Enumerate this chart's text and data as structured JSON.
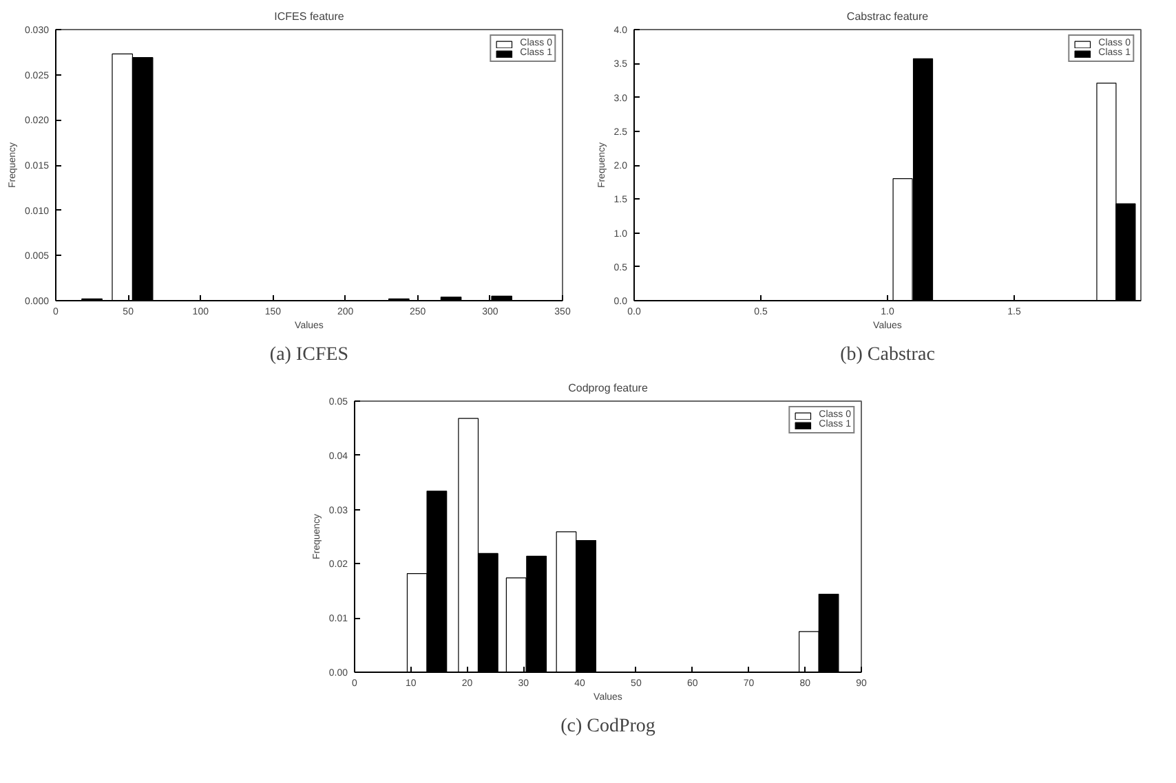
{
  "chart_data": [
    {
      "type": "bar",
      "title": "ICFES feature",
      "xlabel": "Values",
      "ylabel": "Frequency",
      "annotations": [
        "(a) ICFES"
      ],
      "legend": "top right",
      "xlim": [
        0,
        350
      ],
      "xticks": [
        0,
        50,
        100,
        150,
        200,
        250,
        300,
        350
      ],
      "ylim": [
        0,
        0.03
      ],
      "yticks": [
        {
          "value": 0,
          "label": "0.000"
        },
        {
          "value": 0.005,
          "label": "0.005"
        },
        {
          "value": 0.01,
          "label": "0.010"
        },
        {
          "value": 0.015,
          "label": "0.015"
        },
        {
          "value": 0.02,
          "label": "0.020"
        },
        {
          "value": 0.025,
          "label": "0.025"
        },
        {
          "value": 0.03,
          "label": "0.030"
        }
      ],
      "series": [
        {
          "name": "Class 0",
          "color": "#ffffff",
          "x": [
            46
          ],
          "values": [
            0.0273
          ]
        },
        {
          "name": "Class 1",
          "color": "#000000",
          "x": [
            25,
            60,
            237,
            273,
            308
          ],
          "values": [
            0.0002,
            0.0269,
            0.0002,
            0.0004,
            0.0005
          ]
        }
      ]
    },
    {
      "type": "bar",
      "title": "Cabstrac feature",
      "xlabel": "Values",
      "ylabel": "Frequency",
      "annotations": [
        "(b) Cabstrac"
      ],
      "legend": "top right",
      "xlim": [
        0,
        2
      ],
      "xticks": [
        {
          "value": 0,
          "label": "0.0"
        },
        {
          "value": 0.5,
          "label": "0.5"
        },
        {
          "value": 1,
          "label": "1.0"
        },
        {
          "value": 1.5,
          "label": "1.5"
        }
      ],
      "ylim": [
        0,
        4
      ],
      "yticks": [
        {
          "value": 0,
          "label": "0.0"
        },
        {
          "value": 0.5,
          "label": "0.5"
        },
        {
          "value": 1,
          "label": "1.0"
        },
        {
          "value": 1.5,
          "label": "1.5"
        },
        {
          "value": 2,
          "label": "2.0"
        },
        {
          "value": 2.5,
          "label": "2.5"
        },
        {
          "value": 3,
          "label": "3.0"
        },
        {
          "value": 3.5,
          "label": "3.5"
        },
        {
          "value": 4,
          "label": "4.0"
        }
      ],
      "series": [
        {
          "name": "Class 0",
          "color": "#ffffff",
          "x": [
            1.06,
            1.864
          ],
          "values": [
            1.8,
            3.21
          ]
        },
        {
          "name": "Class 1",
          "color": "#000000",
          "x": [
            1.14,
            1.94
          ],
          "values": [
            3.57,
            1.43
          ]
        }
      ]
    },
    {
      "type": "bar",
      "title": "Codprog feature",
      "xlabel": "Values",
      "ylabel": "Frequency",
      "annotations": [
        "(c) CodProg"
      ],
      "legend": "top right",
      "xlim": [
        0,
        90
      ],
      "xticks": [
        0,
        10,
        20,
        30,
        40,
        50,
        60,
        70,
        80,
        90
      ],
      "ylim": [
        0,
        0.05
      ],
      "yticks": [
        {
          "value": 0,
          "label": "0.00"
        },
        {
          "value": 0.01,
          "label": "0.01"
        },
        {
          "value": 0.02,
          "label": "0.02"
        },
        {
          "value": 0.03,
          "label": "0.03"
        },
        {
          "value": 0.04,
          "label": "0.04"
        },
        {
          "value": 0.05,
          "label": "0.05"
        }
      ],
      "series": [
        {
          "name": "Class 0",
          "color": "#ffffff",
          "x": [
            11.1,
            20.2,
            28.7,
            37.6,
            80.7
          ],
          "values": [
            0.0182,
            0.0468,
            0.0174,
            0.0259,
            0.0075
          ]
        },
        {
          "name": "Class 1",
          "color": "#000000",
          "x": [
            14.6,
            23.7,
            32.3,
            41.1,
            84.2
          ],
          "values": [
            0.0334,
            0.0219,
            0.0214,
            0.0243,
            0.0144
          ]
        }
      ]
    }
  ]
}
